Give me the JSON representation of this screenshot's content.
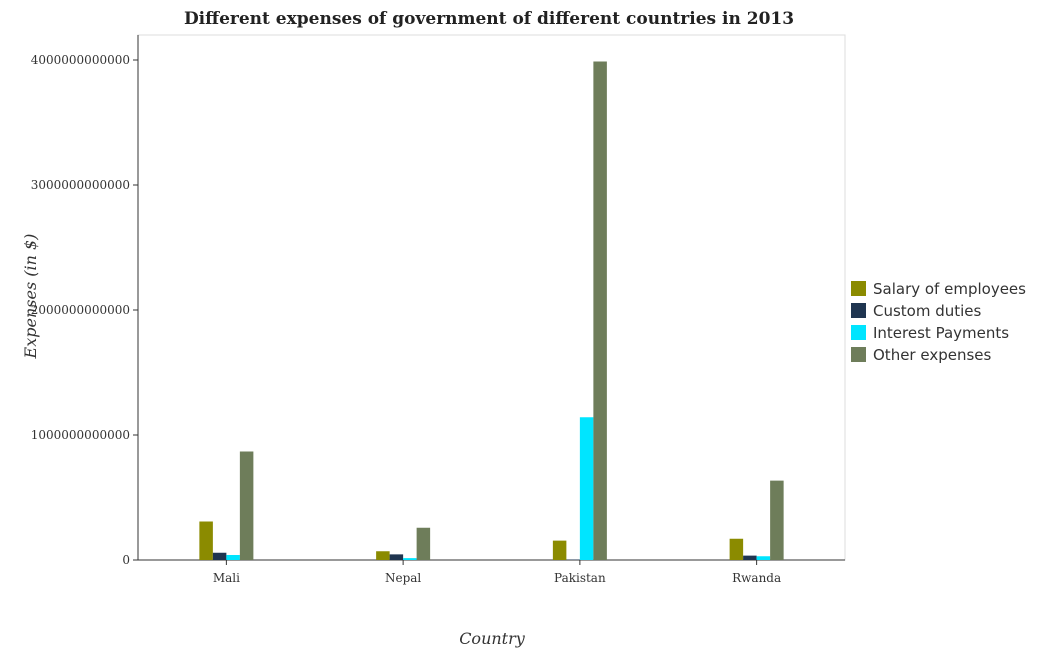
{
  "chart_data": {
    "type": "bar",
    "title": "Different expenses of government of different countries in 2013",
    "xlabel": "Country",
    "ylabel": "Expenses (in $)",
    "categories": [
      "Mali",
      "Nepal",
      "Pakistan",
      "Rwanda"
    ],
    "ylim": [
      0,
      4200000000000
    ],
    "yticks": [
      0,
      1000000000000,
      2000000000000,
      3000000000000,
      4000000000000
    ],
    "ytick_labels": [
      "0",
      "1000000000000",
      "2000000000000",
      "3000000000000",
      "4000000000000"
    ],
    "legend_position": "right",
    "grid": false,
    "series": [
      {
        "name": "Salary of employees",
        "color": "#8b8b00",
        "values": [
          308000000000,
          70000000000,
          155000000000,
          170000000000
        ]
      },
      {
        "name": "Custom duties",
        "color": "#1f3550",
        "values": [
          58000000000,
          45000000000,
          4000000000,
          35000000000
        ]
      },
      {
        "name": "Interest Payments",
        "color": "#00e5ff",
        "values": [
          40000000000,
          15000000000,
          1142000000000,
          30000000000
        ]
      },
      {
        "name": "Other expenses",
        "color": "#6e7d5a",
        "values": [
          868000000000,
          258000000000,
          3988000000000,
          635000000000
        ]
      }
    ]
  }
}
